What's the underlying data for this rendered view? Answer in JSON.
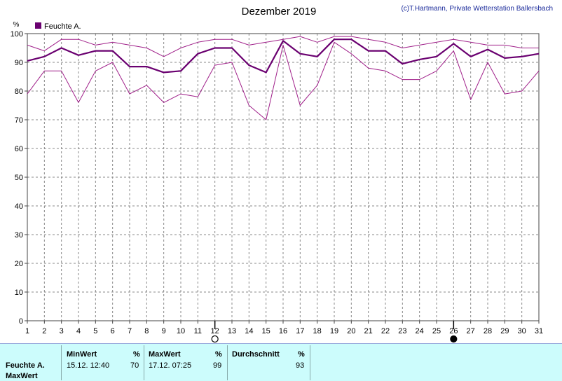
{
  "header": {
    "title": "Dezember 2019",
    "credit": "(c)T.Hartmann, Private Wetterstation Ballersbach"
  },
  "chart_data": {
    "type": "line",
    "title": "Dezember 2019",
    "ylabel": "%",
    "ylim": [
      0,
      100
    ],
    "xlim": [
      1,
      31
    ],
    "grid": true,
    "legend_position": "top-left",
    "y_ticks": [
      "0",
      "10",
      "20",
      "30",
      "40",
      "50",
      "60",
      "70",
      "80",
      "90",
      "100"
    ],
    "x": [
      1,
      2,
      3,
      4,
      5,
      6,
      7,
      8,
      9,
      10,
      11,
      12,
      13,
      14,
      15,
      16,
      17,
      18,
      19,
      20,
      21,
      22,
      23,
      24,
      25,
      26,
      27,
      28,
      29,
      30,
      31
    ],
    "legend_label": "Feuchte A.",
    "series": [
      {
        "name": "Feuchte A.",
        "color": "#6a0070",
        "width": 2.2,
        "values": [
          90.5,
          92,
          95,
          92.5,
          94,
          94,
          88.5,
          88.5,
          86.5,
          87,
          93,
          95,
          95,
          89,
          86.5,
          97.5,
          93,
          92,
          98,
          98,
          94,
          94,
          89.5,
          91,
          92,
          96.5,
          92,
          94.5,
          91.5,
          92,
          93
        ]
      },
      {
        "color": "#a0208a",
        "width": 1,
        "values": [
          96,
          94,
          98,
          98,
          96,
          97,
          96,
          95,
          92,
          95,
          97,
          98,
          98,
          96,
          97,
          98,
          99,
          97,
          99,
          99,
          98,
          97,
          95,
          96,
          97,
          98,
          97,
          96,
          96,
          95,
          95
        ]
      },
      {
        "color": "#a0208a",
        "width": 1,
        "values": [
          79,
          87,
          87,
          76,
          87,
          90,
          79,
          82,
          76,
          79,
          78,
          89,
          90,
          75,
          70,
          96,
          75,
          82,
          97,
          93,
          88,
          87,
          84,
          84,
          87,
          94,
          77,
          90,
          79,
          80,
          87
        ]
      }
    ],
    "markers": [
      {
        "day": 12,
        "symbol": "empty-circle",
        "meaning": "full moon"
      },
      {
        "day": 26,
        "symbol": "filled-circle",
        "meaning": "new moon"
      }
    ]
  },
  "stats": {
    "min_header": "MinWert",
    "max_header": "MaxWert",
    "avg_header": "Durchschnitt",
    "unit": "%",
    "row_label": "Feuchte A.",
    "row_label_2": "MaxWert",
    "min_time": "15.12.  12:40",
    "min_value": "70",
    "max_time": "17.12.  07:25",
    "max_value": "99",
    "avg_value": "93"
  },
  "colors": {
    "accent": "#6a0070",
    "panel": "#ccfcfc",
    "grid": "#888888"
  }
}
